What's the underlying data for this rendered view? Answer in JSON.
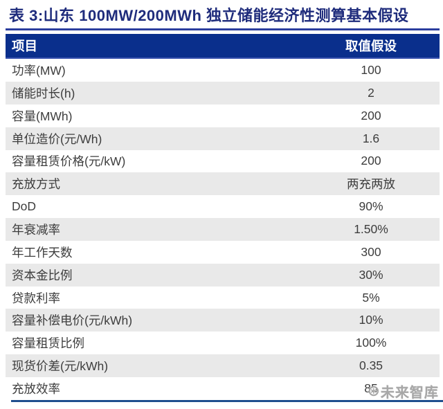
{
  "table": {
    "title": "表 3:山东 100MW/200MWh 独立储能经济性测算基本假设",
    "columns": [
      "项目",
      "取值假设"
    ],
    "rows": [
      {
        "label": "功率(MW)",
        "value": "100"
      },
      {
        "label": "储能时长(h)",
        "value": "2"
      },
      {
        "label": "容量(MWh)",
        "value": "200"
      },
      {
        "label": "单位造价(元/Wh)",
        "value": "1.6"
      },
      {
        "label": "容量租赁价格(元/kW)",
        "value": "200"
      },
      {
        "label": "充放方式",
        "value": "两充两放"
      },
      {
        "label": "DoD",
        "value": "90%"
      },
      {
        "label": "年衰减率",
        "value": "1.50%"
      },
      {
        "label": "年工作天数",
        "value": "300"
      },
      {
        "label": "资本金比例",
        "value": "30%"
      },
      {
        "label": "贷款利率",
        "value": "5%"
      },
      {
        "label": "容量补偿电价(元/kWh)",
        "value": "10%"
      },
      {
        "label": "容量租赁比例",
        "value": "100%"
      },
      {
        "label": "现货价差(元/kWh)",
        "value": "0.35"
      },
      {
        "label": "充放效率",
        "value": "85"
      }
    ]
  },
  "watermark": {
    "logo_icon": "⊛",
    "text": "未来智库"
  },
  "colors": {
    "header_bg": "#0A2F8C",
    "title_color": "#1F2C7C",
    "title_rule": "#2B3E9E",
    "bottom_rule": "#1F4E8E",
    "row_alt_bg": "#E9E9E9",
    "text_color": "#3D3D3D",
    "watermark_color": "#A7A7A7"
  }
}
